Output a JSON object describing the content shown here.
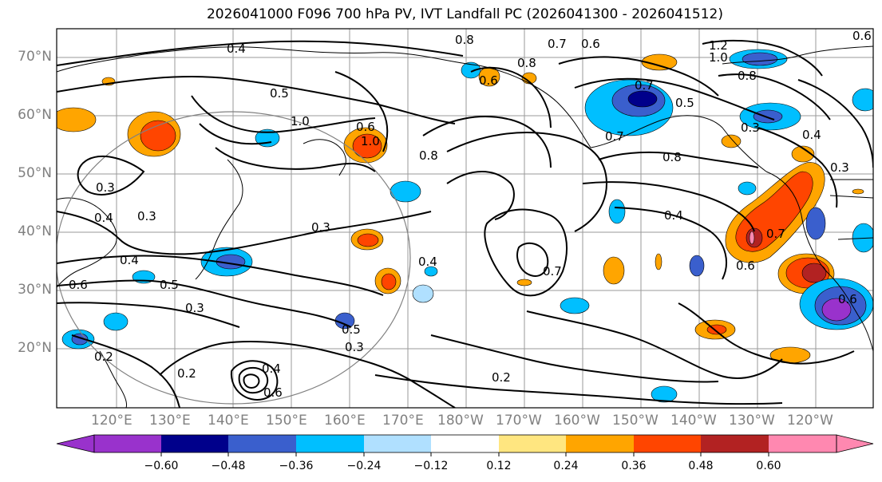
{
  "title": "2026041000 F096 700 hPa PV, IVT Landfall PC (2026041300 - 2026041512)",
  "lat_labels": [
    "70°N",
    "60°N",
    "50°N",
    "40°N",
    "30°N",
    "20°N"
  ],
  "lon_labels": [
    "120°E",
    "130°E",
    "140°E",
    "150°E",
    "160°E",
    "170°E",
    "180°W",
    "170°W",
    "160°W",
    "150°W",
    "140°W",
    "130°W",
    "120°W"
  ],
  "colorbar": {
    "tick_labels": [
      "−0.60",
      "−0.48",
      "−0.36",
      "−0.24",
      "−0.12",
      "0.12",
      "0.24",
      "0.36",
      "0.48",
      "0.60"
    ],
    "colors": [
      "#9932cc",
      "#00008b",
      "#3a5fcd",
      "#00bfff",
      "#b0e0ff",
      "#ffffff",
      "#ffe680",
      "#ffa500",
      "#ff4500",
      "#b22222",
      "#ff88b0"
    ]
  },
  "contour_labels": [
    "0.4",
    "0.5",
    "1.0",
    "0.6",
    "1.0",
    "0.8",
    "0.3",
    "0.4",
    "0.3",
    "0.4",
    "0.6",
    "0.5",
    "0.3",
    "0.3",
    "0.8",
    "0.7",
    "0.6",
    "0.8",
    "0.6",
    "1.2",
    "1.0",
    "0.7",
    "0.7",
    "0.5",
    "0.8",
    "0.3",
    "0.4",
    "0.3",
    "0.8",
    "0.4",
    "0.7",
    "0.4",
    "0.5",
    "0.3",
    "0.2",
    "0.2",
    "0.4",
    "0.6",
    "0.2",
    "0.6",
    "0.7",
    "0.6",
    "0.6"
  ]
}
